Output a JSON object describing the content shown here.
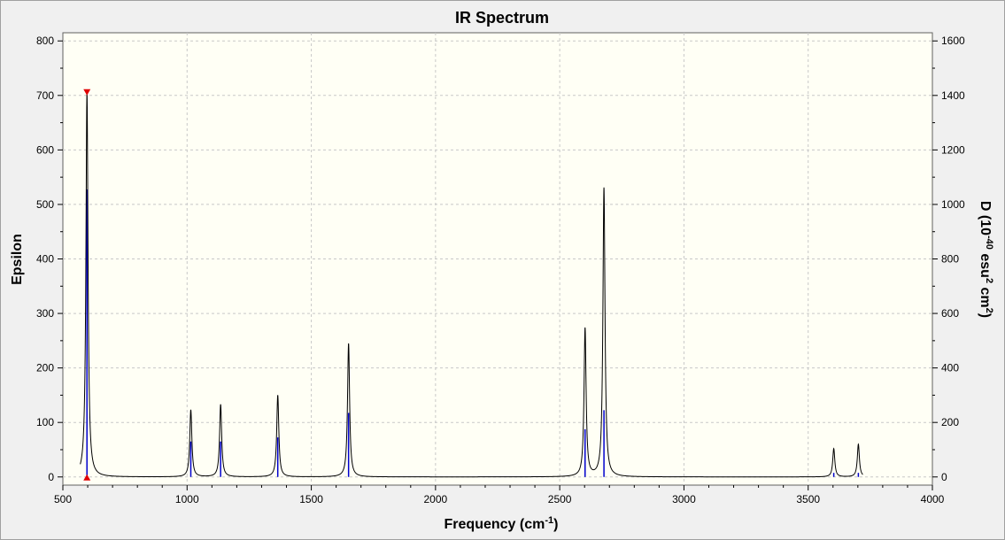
{
  "chart_data": {
    "type": "line",
    "title": "IR Spectrum",
    "xlabel_main": "Frequency (cm",
    "xlabel_sup": "-1",
    "xlabel_end": ")",
    "ylabel_left": "Epsilon",
    "ylabel_right_main": "D (10",
    "ylabel_right_sup1": "-40",
    "ylabel_right_mid": " esu",
    "ylabel_right_sup2": "2",
    "ylabel_right_mid2": " cm",
    "ylabel_right_sup3": "2",
    "ylabel_right_end": ")",
    "xlim": [
      500,
      4000
    ],
    "ylim_left": [
      -15,
      815
    ],
    "ylim_right": [
      -30,
      1630
    ],
    "x_ticks": [
      500,
      1000,
      1500,
      2000,
      2500,
      3000,
      3500,
      4000
    ],
    "y_left_ticks": [
      0,
      100,
      200,
      300,
      400,
      500,
      600,
      700,
      800
    ],
    "y_right_ticks": [
      0,
      200,
      400,
      600,
      800,
      1000,
      1200,
      1400,
      1600
    ],
    "grid": true,
    "spectrum_range": [
      570,
      3720
    ],
    "peaks": [
      {
        "x": 597,
        "epsilon": 705,
        "stick_D": 1055
      },
      {
        "x": 1015,
        "epsilon": 123,
        "stick_D": 130
      },
      {
        "x": 1135,
        "epsilon": 133,
        "stick_D": 130
      },
      {
        "x": 1365,
        "epsilon": 150,
        "stick_D": 145
      },
      {
        "x": 1650,
        "epsilon": 245,
        "stick_D": 235
      },
      {
        "x": 2602,
        "epsilon": 272,
        "stick_D": 175
      },
      {
        "x": 2678,
        "epsilon": 530,
        "stick_D": 245
      },
      {
        "x": 3603,
        "epsilon": 52,
        "stick_D": 15
      },
      {
        "x": 3702,
        "epsilon": 60,
        "stick_D": 15
      }
    ],
    "markers": [
      {
        "x": 597,
        "y": 705,
        "shape": "triangle-down"
      },
      {
        "x": 597,
        "y": 0,
        "shape": "triangle-up"
      }
    ],
    "colors": {
      "spectrum": "#000000",
      "sticks": "#0000cc",
      "markers": "#e00000",
      "plot_bg": "#fffff5",
      "grid": "#c8c8c8"
    }
  }
}
